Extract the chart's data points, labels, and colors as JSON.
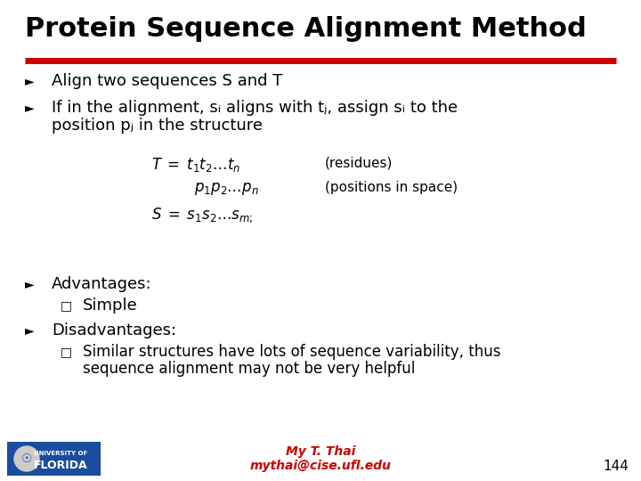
{
  "title": "Protein Sequence Alignment Method",
  "title_fontsize": 22,
  "title_color": "#000000",
  "red_line_color": "#CC0000",
  "bg_color": "#FFFFFF",
  "bullet_color": "#000000",
  "bullet_fontsize": 13,
  "footer_color": "#CC0000",
  "footer_name": "My T. Thai",
  "footer_email": "mythai@cise.ufl.edu",
  "footer_number": "144",
  "advantages_label": "Advantages:",
  "advantages_items": [
    "Simple"
  ],
  "disadvantages_label": "Disadvantages:",
  "eq_fontsize": 12,
  "eq_label_fontsize": 11
}
